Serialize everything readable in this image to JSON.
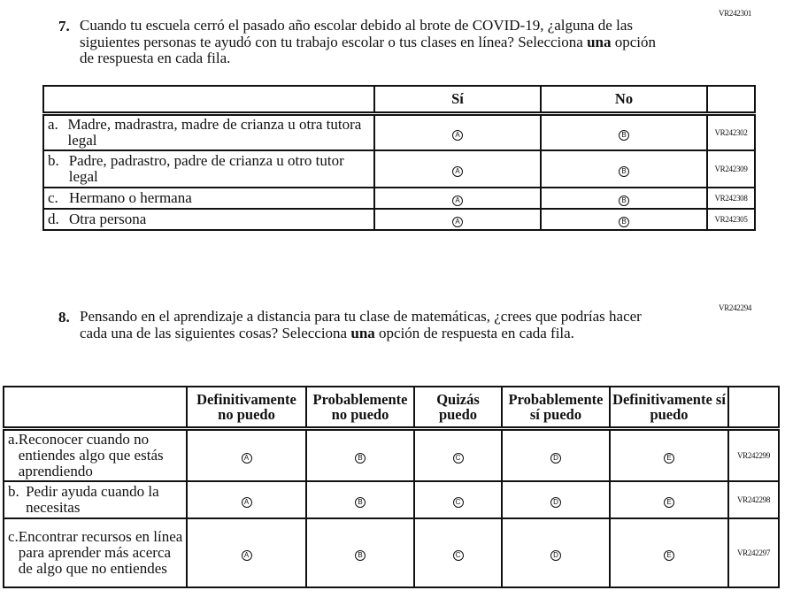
{
  "q7": {
    "code": "VR242301",
    "number": "7.",
    "text_pre": "Cuando tu escuela cerró el pasado año escolar debido al brote de COVID-19, ¿alguna de las siguientes personas te ayudó con tu trabajo escolar o tus clases en línea? Selecciona ",
    "text_bold": "una",
    "text_post": " opción de respuesta en cada fila.",
    "columns": [
      "Sí",
      "No"
    ],
    "rows": [
      {
        "letter": "a.",
        "label": "Madre, madrastra, madre de crianza u otra tutora legal",
        "code": "VR242302"
      },
      {
        "letter": "b.",
        "label": "Padre, padrastro, padre de crianza u otro tutor legal",
        "code": "VR242309"
      },
      {
        "letter": "c.",
        "label": "Hermano o hermana",
        "code": "VR242308"
      },
      {
        "letter": "d.",
        "label": "Otra persona",
        "code": "VR242305"
      }
    ],
    "options": [
      "A",
      "B"
    ]
  },
  "q8": {
    "code": "VR242294",
    "number": "8.",
    "text_pre": "Pensando en el aprendizaje a distancia para tu clase de matemáticas, ¿crees que podrías hacer cada una de las siguientes cosas? Selecciona ",
    "text_bold": "una",
    "text_post": " opción de respuesta en cada fila.",
    "columns": [
      "Definitivamente no puedo",
      "Probablemente no puedo",
      "Quizás puedo",
      "Probablemente sí puedo",
      "Definitivamente sí puedo"
    ],
    "rows": [
      {
        "letter": "a.",
        "label": "Reconocer cuando no entiendes algo que estás aprendiendo",
        "code": "VR242299"
      },
      {
        "letter": "b.",
        "label": "Pedir ayuda cuando la necesitas",
        "code": "VR242298"
      },
      {
        "letter": "c.",
        "label": "Encontrar recursos en línea para aprender más acerca de algo que no entiendes",
        "code": "VR242297"
      }
    ],
    "options": [
      "A",
      "B",
      "C",
      "D",
      "E"
    ]
  }
}
